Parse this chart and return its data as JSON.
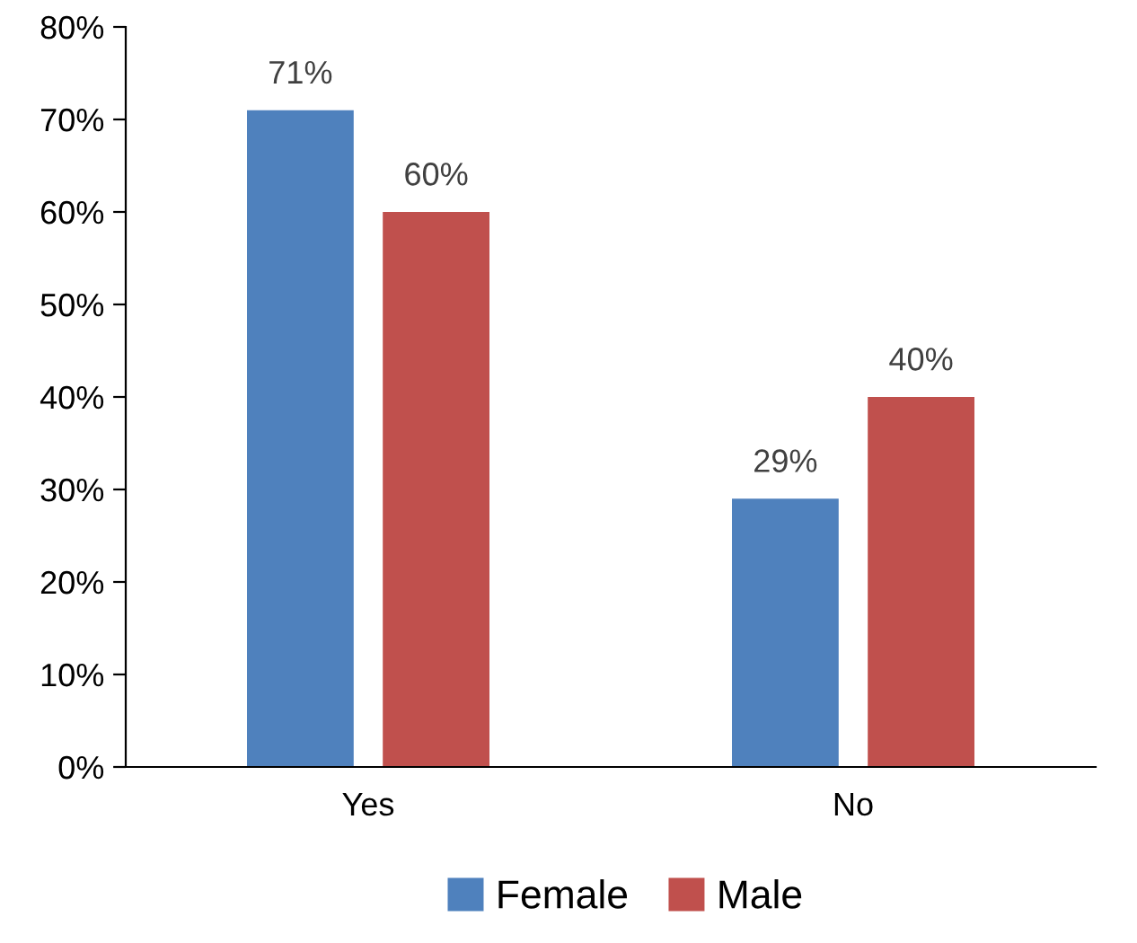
{
  "chart_data": {
    "type": "bar",
    "categories": [
      "Yes",
      "No"
    ],
    "series": [
      {
        "name": "Female",
        "color": "#4f81bd",
        "values": [
          71,
          29
        ],
        "value_labels": [
          "71%",
          "29%"
        ]
      },
      {
        "name": "Male",
        "color": "#c0504d",
        "values": [
          60,
          40
        ],
        "value_labels": [
          "60%",
          "40%"
        ]
      }
    ],
    "ylim": [
      0,
      80
    ],
    "yticks": [
      {
        "value": 0,
        "label": "0%"
      },
      {
        "value": 10,
        "label": "10%"
      },
      {
        "value": 20,
        "label": "20%"
      },
      {
        "value": 30,
        "label": "30%"
      },
      {
        "value": 40,
        "label": "40%"
      },
      {
        "value": 50,
        "label": "50%"
      },
      {
        "value": 60,
        "label": "60%"
      },
      {
        "value": 70,
        "label": "70%"
      },
      {
        "value": 80,
        "label": "80%"
      }
    ],
    "grid": false,
    "legend": "bottom"
  }
}
